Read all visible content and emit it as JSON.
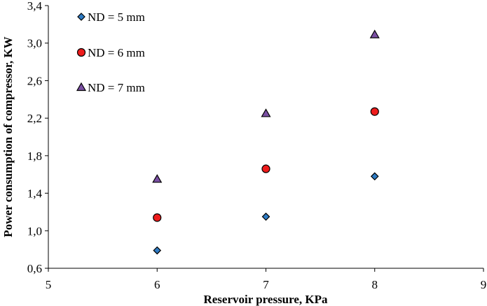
{
  "chart_data": {
    "type": "scatter",
    "title": "",
    "xlabel": "Reservoir pressure, KPa",
    "ylabel": "Power consumption of compressor, KW",
    "xlim": [
      5,
      9
    ],
    "ylim": [
      0.6,
      3.4
    ],
    "xticks": [
      5,
      6,
      7,
      8,
      9
    ],
    "yticks": [
      0.6,
      1.0,
      1.4,
      1.8,
      2.2,
      2.6,
      3.0,
      3.4
    ],
    "xtick_labels": [
      "5",
      "6",
      "7",
      "8",
      "9"
    ],
    "ytick_labels": [
      "0,6",
      "1,0",
      "1,4",
      "1,8",
      "2,2",
      "2,6",
      "3,0",
      "3,4"
    ],
    "grid": false,
    "legend_position": "top-left",
    "series": [
      {
        "name": "ND = 5 mm",
        "marker": "diamond",
        "color": "#2e7bc4",
        "x": [
          6,
          7,
          8
        ],
        "y": [
          0.79,
          1.15,
          1.58
        ]
      },
      {
        "name": "ND = 6 mm",
        "marker": "circle",
        "color": "#ee1c1c",
        "x": [
          6,
          7,
          8
        ],
        "y": [
          1.14,
          1.66,
          2.27
        ]
      },
      {
        "name": "ND = 7 mm",
        "marker": "triangle",
        "color": "#7a4fa3",
        "x": [
          6,
          7,
          8
        ],
        "y": [
          1.55,
          2.25,
          3.09
        ]
      }
    ]
  }
}
